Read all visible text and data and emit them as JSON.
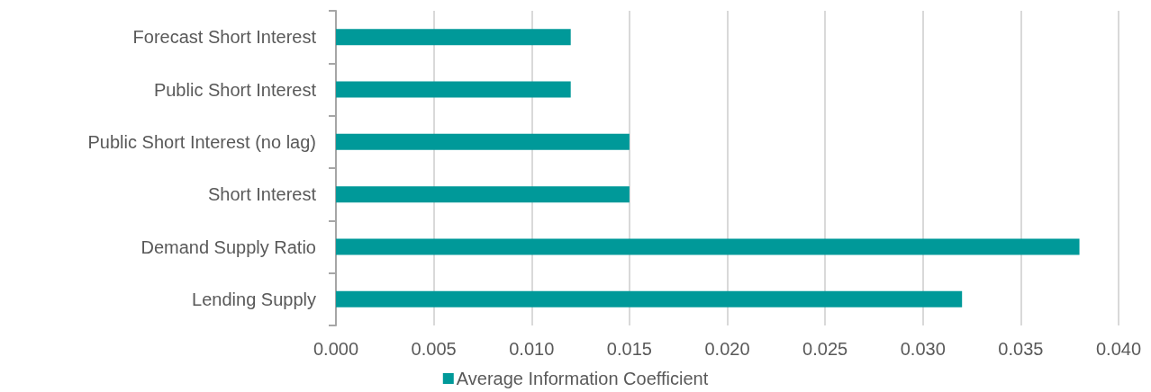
{
  "chart_data": {
    "type": "bar",
    "orientation": "horizontal",
    "categories": [
      "Forecast Short Interest",
      "Public Short Interest",
      "Public Short Interest (no lag)",
      "Short Interest",
      "Demand Supply Ratio",
      "Lending Supply"
    ],
    "series": [
      {
        "name": "Average Information Coefficient",
        "color": "#009999",
        "values": [
          0.012,
          0.012,
          0.015,
          0.015,
          0.038,
          0.032
        ]
      }
    ],
    "xlim": [
      0,
      0.04
    ],
    "xticks": [
      {
        "value": 0,
        "label": "0.000"
      },
      {
        "value": 0.005,
        "label": "0.005"
      },
      {
        "value": 0.01,
        "label": "0.010"
      },
      {
        "value": 0.015,
        "label": "0.015"
      },
      {
        "value": 0.02,
        "label": "0.020"
      },
      {
        "value": 0.025,
        "label": "0.025"
      },
      {
        "value": 0.03,
        "label": "0.030"
      },
      {
        "value": 0.035,
        "label": "0.035"
      },
      {
        "value": 0.04,
        "label": "0.040"
      }
    ],
    "grid": "x",
    "legend": "bottom"
  }
}
